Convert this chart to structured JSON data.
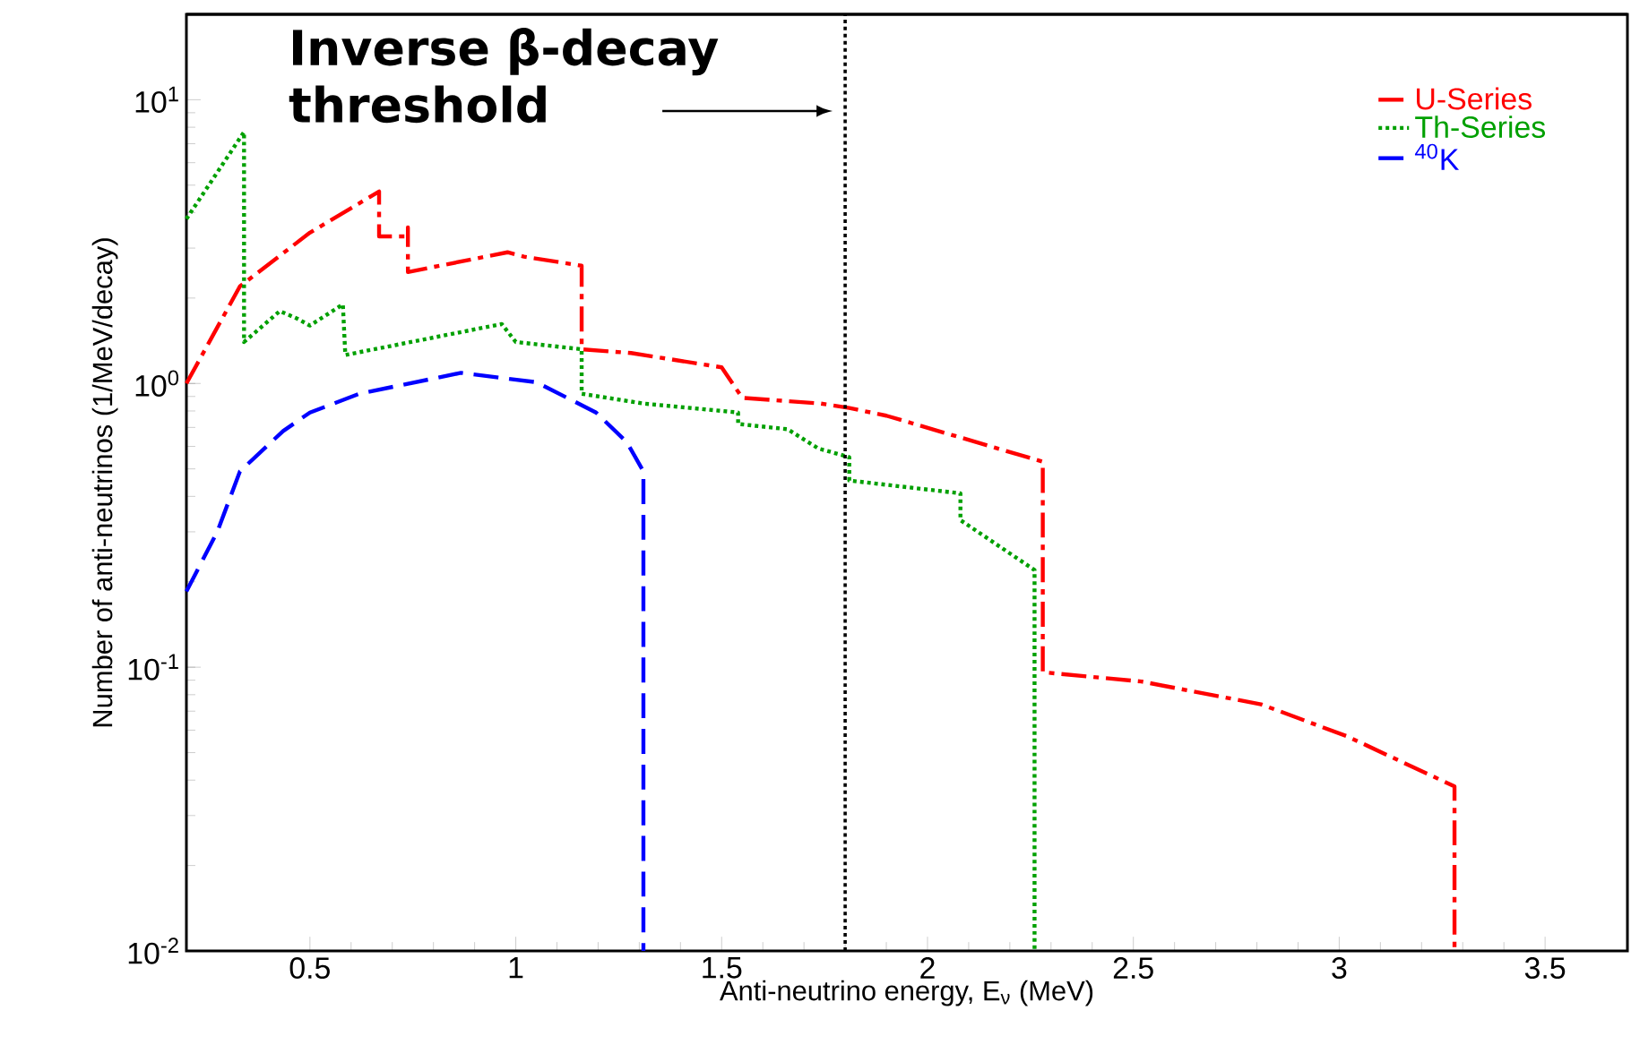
{
  "chart_data": {
    "type": "line",
    "xlabel": "Anti-neutrino energy, E$_{ν}$ (MeV)",
    "ylabel": "Number of anti-neutrinos (1/MeV/decay)",
    "xlim": [
      0.2,
      3.7
    ],
    "ylim": [
      0.01,
      20
    ],
    "log": "y",
    "xticks": [
      0.5,
      1,
      1.5,
      2,
      2.5,
      3,
      3.5
    ],
    "yticks": [
      {
        "value": 0.01,
        "label": "10$^{-2}$"
      },
      {
        "value": 0.1,
        "label": "10$^{-1}$"
      },
      {
        "value": 1,
        "label": "10$^{0}$"
      },
      {
        "value": 10,
        "label": "10$^{1}$"
      }
    ],
    "legend": "top right",
    "grid": false,
    "marker": "none",
    "ref_lines": [
      {
        "axis": "x",
        "value": 1.8,
        "label": "Inverse β-decay threshold",
        "color": "#000000",
        "line_style": "dotted"
      }
    ],
    "series": [
      {
        "name": "U-Series",
        "color": "#ff0000",
        "line_style": "dashdotted",
        "x": [
          0.2,
          0.33,
          0.5,
          0.668,
          0.668,
          0.738,
          0.738,
          0.738,
          0.98,
          1.02,
          1.16,
          1.16,
          1.28,
          1.5,
          1.55,
          1.74,
          1.81,
          1.9,
          2.28,
          2.28,
          2.52,
          2.81,
          3.02,
          3.28,
          3.28
        ],
        "values": [
          1.0,
          2.2,
          3.4,
          4.75,
          3.3,
          3.3,
          3.55,
          2.47,
          2.9,
          2.8,
          2.6,
          1.32,
          1.28,
          1.14,
          0.89,
          0.85,
          0.82,
          0.77,
          0.53,
          0.096,
          0.089,
          0.074,
          0.057,
          0.038,
          0.01
        ]
      },
      {
        "name": "Th-Series",
        "color": "#00a000",
        "line_style": "dotted",
        "x": [
          0.2,
          0.34,
          0.34,
          0.427,
          0.47,
          0.5,
          0.58,
          0.586,
          0.966,
          1.0,
          1.16,
          1.16,
          1.31,
          1.54,
          1.54,
          1.66,
          1.735,
          1.81,
          1.81,
          2.08,
          2.08,
          2.26,
          2.26
        ],
        "values": [
          3.8,
          7.7,
          1.4,
          1.8,
          1.69,
          1.6,
          1.9,
          1.26,
          1.62,
          1.4,
          1.32,
          0.92,
          0.85,
          0.79,
          0.72,
          0.69,
          0.59,
          0.55,
          0.455,
          0.41,
          0.33,
          0.22,
          0.01
        ]
      },
      {
        "name": "$^{40}$K",
        "color": "#0000ff",
        "line_style": "dashed",
        "x": [
          0.2,
          0.275,
          0.33,
          0.435,
          0.5,
          0.62,
          0.867,
          1.05,
          1.195,
          1.27,
          1.31,
          1.31
        ],
        "values": [
          0.185,
          0.3,
          0.49,
          0.68,
          0.79,
          0.92,
          1.09,
          1.01,
          0.79,
          0.62,
          0.49,
          0.01
        ]
      }
    ]
  }
}
